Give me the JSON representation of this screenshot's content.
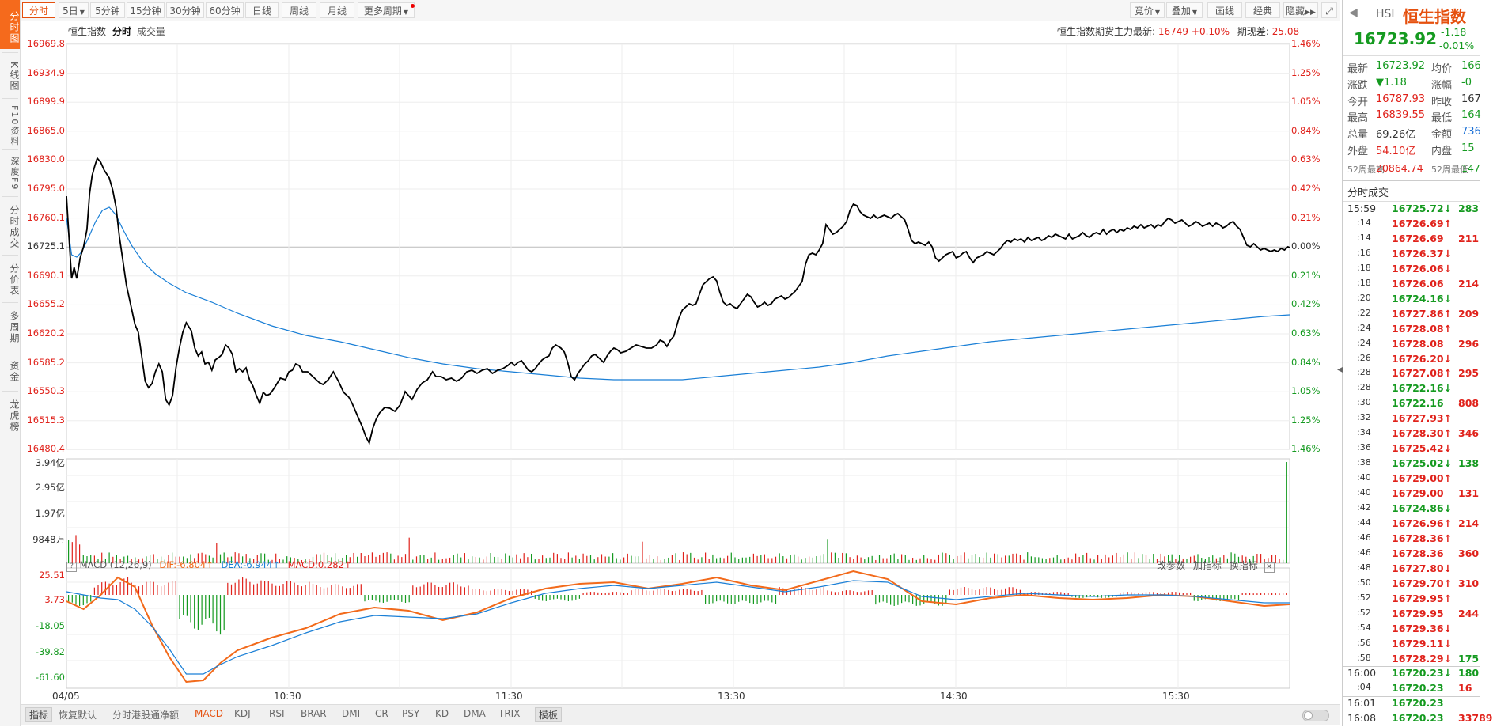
{
  "leftnav": [
    "分时图",
    "K线图",
    "F10资料",
    "深度F9",
    "分时成交",
    "分价表",
    "多周期",
    "资金",
    "龙虎榜"
  ],
  "toolbar": {
    "periods": [
      "分时",
      "5日",
      "5分钟",
      "15分钟",
      "30分钟",
      "60分钟",
      "日线",
      "周线",
      "月线",
      "更多周期"
    ],
    "right": [
      "竞价",
      "叠加",
      "画线",
      "经典",
      "隐藏"
    ]
  },
  "chart": {
    "title": "恒生指数",
    "tab_intraday": "分时",
    "tab_volume": "成交量",
    "futures_label": "恒生指数期货主力最新:",
    "futures_price": "16749",
    "futures_change": "+0.10%",
    "basis_label": "期现差:",
    "basis_value": "25.08",
    "y_left": [
      "16969.8",
      "16934.9",
      "16899.9",
      "16865.0",
      "16830.0",
      "16795.0",
      "16760.1",
      "16725.1",
      "16690.1",
      "16655.2",
      "16620.2",
      "16585.2",
      "16550.3",
      "16515.3",
      "16480.4"
    ],
    "y_right": [
      "1.46%",
      "1.25%",
      "1.05%",
      "0.84%",
      "0.63%",
      "0.42%",
      "0.21%",
      "0.00%",
      "0.21%",
      "0.42%",
      "0.63%",
      "0.84%",
      "1.05%",
      "1.25%",
      "1.46%"
    ],
    "vol_labels": [
      "3.94亿",
      "2.95亿",
      "1.97亿",
      "9848万"
    ],
    "macd_labels": [
      "25.51",
      "3.73",
      "-18.05",
      "-39.82",
      "-61.60"
    ],
    "macd_legend": {
      "name": "MACD (12,26,9)",
      "dif": "DIF:-6.804↑",
      "dea": "DEA:-6.944↑",
      "macd": "MACD:0.282↑"
    },
    "macd_tools": [
      "改参数",
      "加指标",
      "换指标"
    ],
    "x_labels": [
      "04/05",
      "10:30",
      "11:30",
      "13:30",
      "14:30",
      "15:30"
    ],
    "colors": {
      "price": "#000000",
      "avg": "#1a7fd6",
      "dif": "#f26a1b",
      "dea": "#1a7fd6",
      "up": "#e0221b",
      "down": "#159a20"
    }
  },
  "bottombar": {
    "tabs": [
      "指标",
      "恢复默认",
      "分时港股通净额",
      "MACD",
      "KDJ",
      "RSI",
      "BRAR",
      "DMI",
      "CR",
      "PSY",
      "KD",
      "DMA",
      "TRIX",
      "模板"
    ]
  },
  "panel": {
    "code": "HSI",
    "name": "恒生指数",
    "price": "16723.92",
    "change": "-1.18",
    "change_pct": "-0.01%",
    "quote": [
      {
        "k1": "最新",
        "v1": "16723.92",
        "c1": "green",
        "k2": "均价",
        "v2": "166",
        "c2": "green"
      },
      {
        "k1": "涨跌",
        "v1": "▼1.18",
        "c1": "green",
        "k2": "涨幅",
        "v2": "-0",
        "c2": "green"
      },
      {
        "k1": "今开",
        "v1": "16787.93",
        "c1": "red",
        "k2": "昨收",
        "v2": "167",
        "c2": "black"
      },
      {
        "k1": "最高",
        "v1": "16839.55",
        "c1": "red",
        "k2": "最低",
        "v2": "164",
        "c2": "green"
      },
      {
        "k1": "总量",
        "v1": "69.26亿",
        "c1": "black",
        "k2": "金额",
        "v2": "736",
        "c2": "blue"
      },
      {
        "k1": "外盘",
        "v1": "54.10亿",
        "c1": "red",
        "k2": "内盘",
        "v2": "15",
        "c2": "green"
      }
    ],
    "week52": {
      "hi_label": "52周最高",
      "hi": "20864.74",
      "lo_label": "52周最低",
      "lo": "147"
    },
    "trades_title": "分时成交",
    "trades": [
      {
        "t": "15:59",
        "p": "16725.72↓",
        "pc": "green",
        "v": "283",
        "vc": "green"
      },
      {
        "t": ":14",
        "p": "16726.69↑",
        "pc": "red",
        "v": "",
        "vc": "red"
      },
      {
        "t": ":14",
        "p": "16726.69",
        "pc": "red",
        "v": "211",
        "vc": "red"
      },
      {
        "t": ":16",
        "p": "16726.37↓",
        "pc": "red",
        "v": "",
        "vc": "green"
      },
      {
        "t": ":18",
        "p": "16726.06↓",
        "pc": "red",
        "v": "",
        "vc": "green"
      },
      {
        "t": ":18",
        "p": "16726.06",
        "pc": "red",
        "v": "214",
        "vc": "red"
      },
      {
        "t": ":20",
        "p": "16724.16↓",
        "pc": "green",
        "v": "",
        "vc": "green"
      },
      {
        "t": ":22",
        "p": "16727.86↑",
        "pc": "red",
        "v": "209",
        "vc": "red"
      },
      {
        "t": ":24",
        "p": "16728.08↑",
        "pc": "red",
        "v": "",
        "vc": "red"
      },
      {
        "t": ":24",
        "p": "16728.08",
        "pc": "red",
        "v": "296",
        "vc": "red"
      },
      {
        "t": ":26",
        "p": "16726.20↓",
        "pc": "red",
        "v": "",
        "vc": "green"
      },
      {
        "t": ":28",
        "p": "16727.08↑",
        "pc": "red",
        "v": "295",
        "vc": "red"
      },
      {
        "t": ":28",
        "p": "16722.16↓",
        "pc": "green",
        "v": "",
        "vc": "green"
      },
      {
        "t": ":30",
        "p": "16722.16",
        "pc": "green",
        "v": "808",
        "vc": "red"
      },
      {
        "t": ":32",
        "p": "16727.93↑",
        "pc": "red",
        "v": "",
        "vc": "red"
      },
      {
        "t": ":34",
        "p": "16728.30↑",
        "pc": "red",
        "v": "346",
        "vc": "red"
      },
      {
        "t": ":36",
        "p": "16725.42↓",
        "pc": "red",
        "v": "",
        "vc": "green"
      },
      {
        "t": ":38",
        "p": "16725.02↓",
        "pc": "green",
        "v": "138",
        "vc": "green"
      },
      {
        "t": ":40",
        "p": "16729.00↑",
        "pc": "red",
        "v": "",
        "vc": "red"
      },
      {
        "t": ":40",
        "p": "16729.00",
        "pc": "red",
        "v": "131",
        "vc": "red"
      },
      {
        "t": ":42",
        "p": "16724.86↓",
        "pc": "green",
        "v": "",
        "vc": "green"
      },
      {
        "t": ":44",
        "p": "16726.96↑",
        "pc": "red",
        "v": "214",
        "vc": "red"
      },
      {
        "t": ":46",
        "p": "16728.36↑",
        "pc": "red",
        "v": "",
        "vc": "red"
      },
      {
        "t": ":46",
        "p": "16728.36",
        "pc": "red",
        "v": "360",
        "vc": "red"
      },
      {
        "t": ":48",
        "p": "16727.80↓",
        "pc": "red",
        "v": "",
        "vc": "green"
      },
      {
        "t": ":50",
        "p": "16729.70↑",
        "pc": "red",
        "v": "310",
        "vc": "red"
      },
      {
        "t": ":52",
        "p": "16729.95↑",
        "pc": "red",
        "v": "",
        "vc": "red"
      },
      {
        "t": ":52",
        "p": "16729.95",
        "pc": "red",
        "v": "244",
        "vc": "red"
      },
      {
        "t": ":54",
        "p": "16729.36↓",
        "pc": "red",
        "v": "",
        "vc": "green"
      },
      {
        "t": ":56",
        "p": "16729.11↓",
        "pc": "red",
        "v": "",
        "vc": "green"
      },
      {
        "t": ":58",
        "p": "16728.29↓",
        "pc": "red",
        "v": "175",
        "vc": "green"
      },
      {
        "t": "16:00",
        "p": "16720.23↓",
        "pc": "green",
        "v": "180",
        "vc": "green"
      },
      {
        "t": ":04",
        "p": "16720.23",
        "pc": "green",
        "v": "16",
        "vc": "red"
      },
      {
        "t": "16:01",
        "p": "16720.23",
        "pc": "green",
        "v": "",
        "vc": "red"
      },
      {
        "t": "16:08",
        "p": "16720.23",
        "pc": "green",
        "v": "33789",
        "vc": "red"
      }
    ]
  }
}
